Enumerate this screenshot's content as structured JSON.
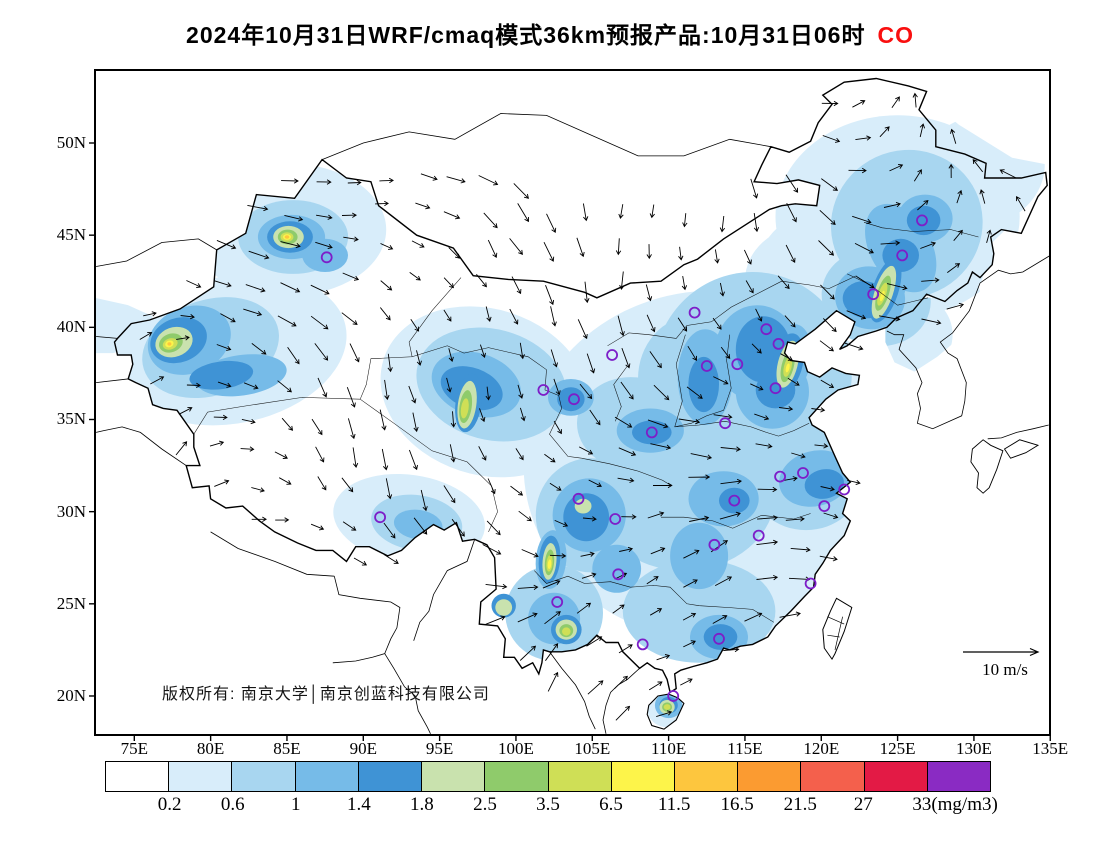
{
  "title": {
    "text": "2024年10月31日WRF/cmaq模式36km预报产品:10月31日06时",
    "species": "CO",
    "species_color": "#F90F0F"
  },
  "map": {
    "copyright": "版权所有: 南京大学│南京创蓝科技有限公司",
    "wind_scale_label": "10 m/s",
    "lat_ticks": [
      "50N",
      "45N",
      "40N",
      "35N",
      "30N",
      "25N",
      "20N"
    ],
    "lon_ticks": [
      "75E",
      "80E",
      "85E",
      "90E",
      "95E",
      "100E",
      "105E",
      "110E",
      "115E",
      "120E",
      "125E",
      "130E",
      "135E"
    ],
    "station_marker_color": "#7D1EC8",
    "stations": [
      [
        87.6,
        43.8
      ],
      [
        91.1,
        29.7
      ],
      [
        101.8,
        36.6
      ],
      [
        103.8,
        36.1
      ],
      [
        104.1,
        30.7
      ],
      [
        106.5,
        29.6
      ],
      [
        106.7,
        26.6
      ],
      [
        102.7,
        25.1
      ],
      [
        108.3,
        22.8
      ],
      [
        110.3,
        20.0
      ],
      [
        113.3,
        23.1
      ],
      [
        113.0,
        28.2
      ],
      [
        114.3,
        30.6
      ],
      [
        115.9,
        28.7
      ],
      [
        119.3,
        26.1
      ],
      [
        120.2,
        30.3
      ],
      [
        121.5,
        31.2
      ],
      [
        117.3,
        31.9
      ],
      [
        118.8,
        32.1
      ],
      [
        113.7,
        34.8
      ],
      [
        117.0,
        36.7
      ],
      [
        114.5,
        38.0
      ],
      [
        112.5,
        37.9
      ],
      [
        116.4,
        39.9
      ],
      [
        117.2,
        39.1
      ],
      [
        111.7,
        40.8
      ],
      [
        123.4,
        41.8
      ],
      [
        125.3,
        43.9
      ],
      [
        126.6,
        45.8
      ],
      [
        106.3,
        38.5
      ],
      [
        108.9,
        34.3
      ]
    ]
  },
  "chart_data": {
    "type": "filled-contour-map",
    "variable": "CO",
    "units": "mg/m3",
    "lon_range_deg": [
      75,
      135
    ],
    "lat_range_deg": [
      20,
      50
    ],
    "colorbar": {
      "levels": [
        "0.2",
        "0.6",
        "1",
        "1.4",
        "1.8",
        "2.5",
        "3.5",
        "6.5",
        "11.5",
        "16.5",
        "21.5",
        "27",
        "33(mg/m3)"
      ],
      "colors": [
        "#FFFFFF",
        "#D8EDFA",
        "#A8D6F0",
        "#76BBE8",
        "#3F93D5",
        "#C9E2AE",
        "#8FCB6B",
        "#CFDF56",
        "#FDF44A",
        "#FDC63E",
        "#FB9B31",
        "#F4604C",
        "#E31A45",
        "#8A2BC3"
      ]
    },
    "field_blobs": [
      [
        113,
        32.5,
        12.5,
        9.5,
        0,
        1
      ],
      [
        125,
        46,
        8,
        5.5,
        0,
        1
      ],
      [
        119,
        42.5,
        4,
        3,
        0,
        1
      ],
      [
        121,
        43.5,
        5,
        3,
        0,
        1
      ],
      [
        85,
        45.3,
        6.5,
        3.6,
        0,
        1
      ],
      [
        81.5,
        38.8,
        7.5,
        4,
        -12,
        1
      ],
      [
        98,
        36.5,
        7,
        4.5,
        18,
        1
      ],
      [
        93,
        29.6,
        5,
        2.4,
        8,
        1
      ],
      [
        130.5,
        48.5,
        4.2,
        3,
        -20,
        1
      ],
      [
        126,
        39.6,
        2.6,
        2.2,
        0,
        1
      ],
      [
        74.6,
        40,
        3,
        2.6,
        0,
        1
      ],
      [
        109.9,
        19.3,
        1.3,
        1,
        0,
        1
      ],
      [
        125.6,
        45.6,
        5,
        4,
        -25,
        2
      ],
      [
        115.5,
        37.5,
        6.5,
        5.5,
        0,
        2
      ],
      [
        111,
        31,
        6,
        4.2,
        0,
        2
      ],
      [
        104.9,
        29.8,
        3.6,
        3.1,
        0,
        2
      ],
      [
        119,
        31.6,
        3.6,
        2.6,
        0,
        2
      ],
      [
        112,
        24.6,
        5,
        2.8,
        0,
        2
      ],
      [
        102.5,
        24.5,
        3.2,
        2.6,
        0,
        2
      ],
      [
        80,
        38.9,
        4.6,
        2.6,
        -18,
        2
      ],
      [
        85.4,
        44.9,
        3.6,
        2,
        0,
        2
      ],
      [
        98.4,
        36.9,
        5,
        3,
        15,
        2
      ],
      [
        93.5,
        29.4,
        3,
        1.5,
        8,
        2
      ],
      [
        111.6,
        37.2,
        3.6,
        3.4,
        0,
        2
      ],
      [
        123.6,
        41.6,
        3.6,
        2.6,
        15,
        2
      ],
      [
        107.5,
        34.8,
        3.5,
        2.5,
        0,
        2
      ],
      [
        115.8,
        38.6,
        2.8,
        2.6,
        0,
        3
      ],
      [
        116.8,
        36.5,
        2.4,
        2,
        0,
        3
      ],
      [
        112.4,
        37.3,
        1.8,
        2.6,
        0,
        3
      ],
      [
        108.8,
        34.4,
        2.2,
        1.2,
        0,
        3
      ],
      [
        104.8,
        29.8,
        2.4,
        2,
        0,
        3
      ],
      [
        113.6,
        30.7,
        2.3,
        1.5,
        0,
        3
      ],
      [
        112,
        27.6,
        1.9,
        1.8,
        0,
        3
      ],
      [
        113.3,
        23.2,
        1.9,
        1.2,
        0,
        3
      ],
      [
        119.6,
        31.8,
        2.4,
        1.5,
        -15,
        3
      ],
      [
        125.2,
        44.3,
        2,
        2.6,
        -30,
        3
      ],
      [
        126.8,
        45.9,
        1.8,
        1.3,
        0,
        3
      ],
      [
        123.2,
        41.6,
        2.3,
        1.7,
        10,
        3
      ],
      [
        78.6,
        39.3,
        2.8,
        1.8,
        -22,
        3
      ],
      [
        82,
        37.4,
        3,
        1.1,
        -8,
        3
      ],
      [
        85.3,
        44.9,
        2.2,
        1.2,
        0,
        3
      ],
      [
        97.4,
        36.9,
        3,
        1.7,
        18,
        3
      ],
      [
        103.6,
        36.2,
        1.5,
        1,
        0,
        3
      ],
      [
        93.6,
        29.3,
        1.6,
        0.8,
        8,
        3
      ],
      [
        102.5,
        24.2,
        1.7,
        1.4,
        0,
        3
      ],
      [
        106.6,
        26.9,
        1.6,
        1.3,
        0,
        3
      ],
      [
        87.5,
        43.9,
        1.5,
        0.9,
        0,
        3
      ],
      [
        110,
        19.5,
        0.9,
        0.7,
        0,
        3
      ],
      [
        95.5,
        27.4,
        1.2,
        0.9,
        0,
        3
      ],
      [
        102.3,
        27.4,
        1,
        1.6,
        5,
        3
      ],
      [
        117.9,
        38.2,
        1.4,
        2,
        12,
        3
      ],
      [
        124.3,
        42.1,
        1.2,
        2.2,
        18,
        3
      ],
      [
        77.9,
        39.3,
        1.9,
        1.2,
        -20,
        4
      ],
      [
        80.7,
        37.4,
        2.1,
        0.75,
        -8,
        4
      ],
      [
        85.2,
        44.9,
        1.5,
        0.85,
        0,
        4
      ],
      [
        97.1,
        36.7,
        2.1,
        1.1,
        20,
        4
      ],
      [
        96.9,
        35.9,
        0.85,
        1.6,
        8,
        4
      ],
      [
        103.6,
        36.1,
        0.9,
        0.65,
        0,
        4
      ],
      [
        112.3,
        36.9,
        1,
        1.5,
        0,
        4
      ],
      [
        116.2,
        38.8,
        1.8,
        1.8,
        0,
        4
      ],
      [
        117,
        36.6,
        1.3,
        1,
        0,
        4
      ],
      [
        104.6,
        29.7,
        1.5,
        1.3,
        0,
        4
      ],
      [
        122.9,
        41.5,
        1.5,
        1,
        10,
        4
      ],
      [
        125.2,
        43.9,
        1.2,
        0.9,
        0,
        4
      ],
      [
        126.7,
        45.8,
        1.1,
        0.8,
        0,
        4
      ],
      [
        120.2,
        31.5,
        1.3,
        0.8,
        -10,
        4
      ],
      [
        114.3,
        30.6,
        1,
        0.7,
        0,
        4
      ],
      [
        113.4,
        23.2,
        1.1,
        0.7,
        0,
        4
      ],
      [
        108.9,
        34.3,
        1.3,
        0.65,
        0,
        4
      ],
      [
        117.8,
        38.1,
        1,
        1.6,
        12,
        4
      ],
      [
        124.2,
        42,
        0.85,
        1.8,
        18,
        4
      ],
      [
        102.2,
        27.4,
        0.7,
        1.3,
        5,
        4
      ],
      [
        110,
        19.5,
        0.6,
        0.45,
        0,
        4
      ],
      [
        95.5,
        27.3,
        0.9,
        0.7,
        0,
        4
      ],
      [
        103.3,
        23.6,
        1,
        0.8,
        0,
        4
      ],
      [
        99.2,
        24.9,
        0.8,
        0.65,
        0,
        4
      ],
      [
        77.6,
        39.2,
        1.25,
        0.8,
        -20,
        5
      ],
      [
        85.1,
        44.9,
        1,
        0.6,
        0,
        5
      ],
      [
        96.8,
        35.8,
        0.6,
        1.3,
        8,
        5
      ],
      [
        117.8,
        38,
        0.65,
        1.3,
        14,
        5
      ],
      [
        124.1,
        41.9,
        0.6,
        1.5,
        18,
        5
      ],
      [
        102.2,
        27.3,
        0.45,
        1,
        5,
        5
      ],
      [
        103.3,
        23.6,
        0.7,
        0.55,
        0,
        5
      ],
      [
        99.2,
        24.8,
        0.55,
        0.45,
        0,
        5
      ],
      [
        95.4,
        27.2,
        0.65,
        0.5,
        0,
        5
      ],
      [
        109.9,
        19.4,
        0.5,
        0.38,
        0,
        5
      ],
      [
        104.4,
        30.3,
        0.55,
        0.4,
        0,
        5
      ],
      [
        77.4,
        39.15,
        0.8,
        0.5,
        -20,
        6
      ],
      [
        85.05,
        44.9,
        0.65,
        0.4,
        0,
        6
      ],
      [
        96.7,
        35.7,
        0.4,
        0.9,
        8,
        6
      ],
      [
        117.8,
        37.9,
        0.4,
        0.9,
        14,
        6
      ],
      [
        124.05,
        41.85,
        0.38,
        1,
        18,
        6
      ],
      [
        102.2,
        27.25,
        0.3,
        0.7,
        5,
        6
      ],
      [
        103.3,
        23.55,
        0.45,
        0.35,
        0,
        6
      ],
      [
        95.4,
        27.2,
        0.4,
        0.3,
        0,
        6
      ],
      [
        109.9,
        19.4,
        0.33,
        0.25,
        0,
        6
      ],
      [
        77.35,
        39.1,
        0.5,
        0.3,
        -20,
        7
      ],
      [
        85,
        44.9,
        0.42,
        0.26,
        0,
        7
      ],
      [
        96.65,
        35.6,
        0.25,
        0.55,
        8,
        7
      ],
      [
        117.8,
        37.85,
        0.25,
        0.55,
        14,
        7
      ],
      [
        124,
        41.8,
        0.24,
        0.65,
        18,
        7
      ],
      [
        102.2,
        27.2,
        0.2,
        0.45,
        5,
        7
      ],
      [
        103.3,
        23.5,
        0.28,
        0.22,
        0,
        7
      ],
      [
        109.9,
        19.4,
        0.22,
        0.16,
        0,
        7
      ],
      [
        77.3,
        39.1,
        0.28,
        0.18,
        -20,
        8
      ],
      [
        85,
        44.9,
        0.26,
        0.16,
        0,
        8
      ],
      [
        102.2,
        27.15,
        0.12,
        0.26,
        5,
        8
      ],
      [
        117.8,
        37.8,
        0.12,
        0.25,
        14,
        8
      ],
      [
        124,
        41.7,
        0.12,
        0.3,
        18,
        8
      ],
      [
        85,
        44.9,
        0.15,
        0.1,
        0,
        9
      ],
      [
        77.3,
        39.1,
        0.13,
        0.09,
        0,
        9
      ]
    ]
  }
}
